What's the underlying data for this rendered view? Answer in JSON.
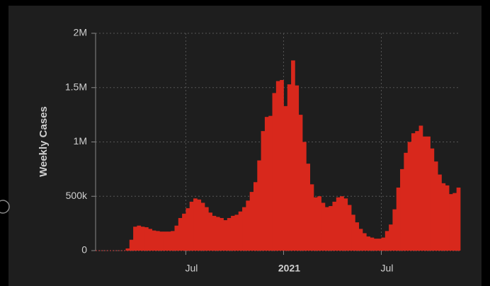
{
  "chart_data": {
    "type": "bar",
    "y_label": "Weekly Cases",
    "color": "#d8281c",
    "grid": true,
    "x": [
      0,
      1,
      2,
      3,
      4,
      5,
      6,
      7,
      8,
      9,
      10,
      11,
      12,
      13,
      14,
      15,
      16,
      17,
      18,
      19,
      20,
      21,
      22,
      23,
      24,
      25,
      26,
      27,
      28,
      29,
      30,
      31,
      32,
      33,
      34,
      35,
      36,
      37,
      38,
      39,
      40,
      41,
      42,
      43,
      44,
      45,
      46,
      47,
      48,
      49,
      50,
      51,
      52,
      53,
      54,
      55,
      56,
      57,
      58,
      59,
      60,
      61,
      62,
      63,
      64,
      65,
      66,
      67,
      68,
      69,
      70,
      71,
      72,
      73,
      74,
      75,
      76,
      77,
      78,
      79,
      80,
      81,
      82,
      83,
      84,
      85,
      86,
      87,
      88,
      89,
      90,
      91,
      92,
      93,
      94,
      95,
      96
    ],
    "values": [
      0,
      0,
      0,
      0,
      0,
      0,
      0,
      0,
      20000,
      100000,
      220000,
      230000,
      220000,
      215000,
      200000,
      185000,
      180000,
      175000,
      175000,
      175000,
      180000,
      230000,
      300000,
      340000,
      390000,
      450000,
      480000,
      470000,
      440000,
      400000,
      350000,
      320000,
      310000,
      300000,
      280000,
      300000,
      320000,
      330000,
      360000,
      400000,
      460000,
      540000,
      630000,
      830000,
      1100000,
      1230000,
      1240000,
      1450000,
      1560000,
      1570000,
      1330000,
      1530000,
      1750000,
      1520000,
      1250000,
      1000000,
      800000,
      610000,
      490000,
      500000,
      440000,
      400000,
      410000,
      450000,
      490000,
      500000,
      480000,
      420000,
      330000,
      260000,
      200000,
      160000,
      130000,
      120000,
      110000,
      110000,
      120000,
      180000,
      240000,
      380000,
      580000,
      750000,
      900000,
      1000000,
      1080000,
      1100000,
      1150000,
      1050000,
      1050000,
      940000,
      820000,
      700000,
      620000,
      600000,
      520000,
      530000,
      580000
    ],
    "xlim": [
      0,
      97
    ],
    "xticks": [
      {
        "value": 24,
        "label": "Jul"
      },
      {
        "value": 50,
        "label": "2021"
      },
      {
        "value": 76,
        "label": "Jul"
      }
    ],
    "ylim": [
      0,
      2000000
    ],
    "yticks": [
      0,
      {
        "value": 500000,
        "label": "500k"
      },
      {
        "value": 1000000,
        "label": "1M"
      },
      {
        "value": 1500000,
        "label": "1.5M"
      },
      {
        "value": 2000000,
        "label": "2M"
      }
    ]
  }
}
